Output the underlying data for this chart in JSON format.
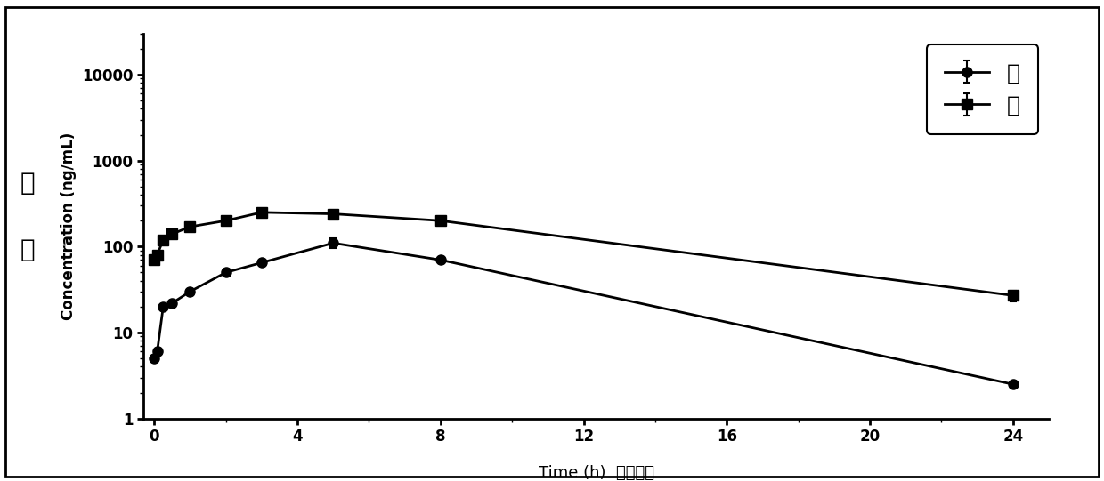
{
  "male_x": [
    0,
    0.083,
    0.25,
    0.5,
    1,
    2,
    3,
    5,
    8,
    24
  ],
  "male_y": [
    5,
    6,
    20,
    22,
    30,
    50,
    65,
    110,
    70,
    2.5
  ],
  "male_yerr": [
    0,
    0,
    0,
    0,
    0,
    0,
    0,
    15,
    0,
    0
  ],
  "female_x": [
    0,
    0.083,
    0.25,
    0.5,
    1,
    2,
    3,
    5,
    8,
    24
  ],
  "female_y": [
    70,
    80,
    120,
    140,
    170,
    200,
    250,
    240,
    200,
    27
  ],
  "female_yerr": [
    0,
    0,
    0,
    0,
    0,
    0,
    0,
    0,
    0,
    4
  ],
  "ylim": [
    1,
    30000
  ],
  "xlim": [
    -0.3,
    25
  ],
  "xlabel_en": "Time (h)",
  "xlabel_cn": "（时间）",
  "ylabel_en": "Concentration (ng/mL)",
  "ylabel_cn": "浓度",
  "legend_male": "雄",
  "legend_female": "雌",
  "color": "#000000",
  "bg_color": "#ffffff",
  "linewidth": 2,
  "markersize": 8
}
